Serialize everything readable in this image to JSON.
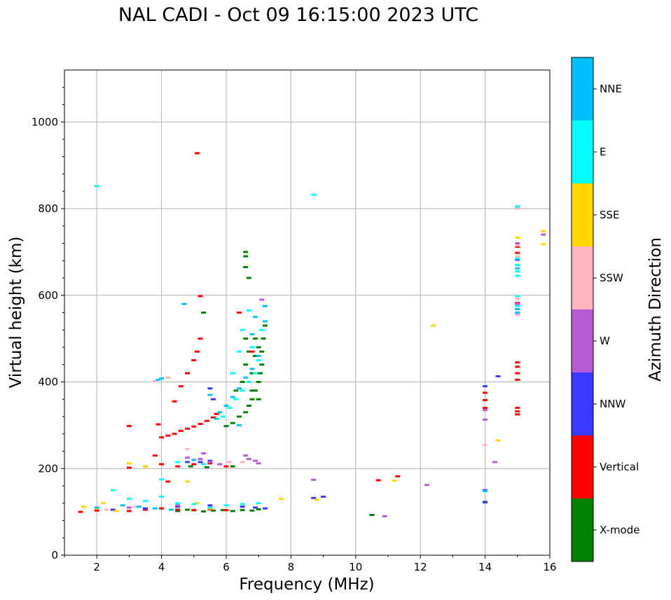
{
  "chart_data": {
    "type": "scatter",
    "title": "NAL CADI - Oct 09 16:15:00 2023 UTC",
    "xlabel": "Frequency (MHz)",
    "ylabel": "Virtual height (km)",
    "xlim": [
      1,
      16
    ],
    "ylim": [
      0,
      1120
    ],
    "xticks": [
      2,
      4,
      6,
      8,
      10,
      12,
      14,
      16
    ],
    "yticks": [
      0,
      200,
      400,
      600,
      800,
      1000
    ],
    "grid": true,
    "colorbar": {
      "label": "Azimuth Direction",
      "categories": [
        {
          "name": "X-mode",
          "color": "#008000"
        },
        {
          "name": "Vertical",
          "color": "#ff0000"
        },
        {
          "name": "NNW",
          "color": "#3a3aff"
        },
        {
          "name": "W",
          "color": "#b65ad6"
        },
        {
          "name": "SSW",
          "color": "#ffb6c1"
        },
        {
          "name": "SSE",
          "color": "#ffd700"
        },
        {
          "name": "E",
          "color": "#00ffff"
        },
        {
          "name": "NNE",
          "color": "#00bfff"
        }
      ]
    },
    "series": [
      {
        "name": "X-mode",
        "points": [
          [
            4.5,
            102
          ],
          [
            4.8,
            105
          ],
          [
            5.0,
            104
          ],
          [
            5.3,
            101
          ],
          [
            5.6,
            103
          ],
          [
            5.9,
            104
          ],
          [
            6.2,
            102
          ],
          [
            6.5,
            104
          ],
          [
            6.8,
            103
          ],
          [
            7.0,
            106
          ],
          [
            4.9,
            205
          ],
          [
            5.4,
            203
          ],
          [
            6.2,
            205
          ],
          [
            6.6,
            700
          ],
          [
            6.6,
            690
          ],
          [
            6.6,
            665
          ],
          [
            6.7,
            640
          ],
          [
            6.0,
            298
          ],
          [
            6.2,
            305
          ],
          [
            6.4,
            320
          ],
          [
            6.6,
            330
          ],
          [
            6.7,
            345
          ],
          [
            6.8,
            360
          ],
          [
            6.9,
            380
          ],
          [
            7.0,
            400
          ],
          [
            7.05,
            420
          ],
          [
            7.1,
            440
          ],
          [
            7.1,
            470
          ],
          [
            7.15,
            500
          ],
          [
            7.2,
            530
          ],
          [
            6.8,
            420
          ],
          [
            6.9,
            460
          ],
          [
            6.7,
            470
          ],
          [
            6.6,
            500
          ],
          [
            6.9,
            500
          ],
          [
            7.0,
            480
          ],
          [
            7.0,
            360
          ],
          [
            6.8,
            380
          ],
          [
            6.6,
            440
          ],
          [
            6.5,
            400
          ],
          [
            6.3,
            380
          ],
          [
            5.3,
            560
          ],
          [
            14.0,
            123
          ],
          [
            15.0,
            582
          ],
          [
            15.0,
            325
          ],
          [
            10.5,
            93
          ]
        ]
      },
      {
        "name": "Vertical",
        "points": [
          [
            1.5,
            100
          ],
          [
            2.0,
            103
          ],
          [
            2.5,
            105
          ],
          [
            3.0,
            102
          ],
          [
            3.5,
            105
          ],
          [
            4.0,
            108
          ],
          [
            4.5,
            105
          ],
          [
            5.0,
            104
          ],
          [
            5.5,
            106
          ],
          [
            6.0,
            104
          ],
          [
            3.0,
            202
          ],
          [
            3.5,
            205
          ],
          [
            4.0,
            210
          ],
          [
            4.5,
            205
          ],
          [
            5.0,
            210
          ],
          [
            5.5,
            212
          ],
          [
            6.0,
            205
          ],
          [
            4.0,
            272
          ],
          [
            4.2,
            276
          ],
          [
            4.4,
            280
          ],
          [
            4.6,
            287
          ],
          [
            4.8,
            292
          ],
          [
            5.0,
            297
          ],
          [
            5.2,
            303
          ],
          [
            5.4,
            310
          ],
          [
            5.6,
            318
          ],
          [
            5.7,
            326
          ],
          [
            4.4,
            355
          ],
          [
            4.6,
            390
          ],
          [
            4.8,
            420
          ],
          [
            5.0,
            450
          ],
          [
            5.1,
            470
          ],
          [
            5.2,
            500
          ],
          [
            3.0,
            298
          ],
          [
            3.9,
            302
          ],
          [
            5.2,
            598
          ],
          [
            5.1,
            928
          ],
          [
            6.4,
            560
          ],
          [
            6.8,
            470
          ],
          [
            14.0,
            375
          ],
          [
            14.0,
            358
          ],
          [
            14.0,
            340
          ],
          [
            15.0,
            805
          ],
          [
            15.0,
            712
          ],
          [
            15.0,
            698
          ],
          [
            15.0,
            670
          ],
          [
            15.0,
            582
          ],
          [
            15.0,
            555
          ],
          [
            15.0,
            445
          ],
          [
            15.0,
            435
          ],
          [
            15.0,
            420
          ],
          [
            15.0,
            405
          ],
          [
            15.0,
            340
          ],
          [
            15.0,
            332
          ],
          [
            15.0,
            325
          ],
          [
            10.7,
            173
          ],
          [
            11.3,
            182
          ],
          [
            3.8,
            230
          ],
          [
            4.2,
            170
          ]
        ]
      },
      {
        "name": "NNW",
        "points": [
          [
            2.5,
            105
          ],
          [
            3.5,
            108
          ],
          [
            4.5,
            112
          ],
          [
            5.5,
            115
          ],
          [
            6.5,
            112
          ],
          [
            6.9,
            110
          ],
          [
            7.2,
            108
          ],
          [
            5.5,
            385
          ],
          [
            5.6,
            360
          ],
          [
            5.2,
            215
          ],
          [
            5.5,
            218
          ],
          [
            4.8,
            215
          ],
          [
            14.0,
            390
          ],
          [
            14.0,
            150
          ],
          [
            14.0,
            122
          ],
          [
            15.0,
            682
          ],
          [
            9.0,
            135
          ],
          [
            8.7,
            132
          ],
          [
            14.4,
            413
          ]
        ]
      },
      {
        "name": "W",
        "points": [
          [
            4.8,
            225
          ],
          [
            5.2,
            222
          ],
          [
            5.5,
            215
          ],
          [
            6.7,
            222
          ],
          [
            6.9,
            218
          ],
          [
            7.0,
            212
          ],
          [
            5.3,
            235
          ],
          [
            5.8,
            210
          ],
          [
            7.1,
            590
          ],
          [
            6.6,
            230
          ],
          [
            14.0,
            335
          ],
          [
            14.0,
            313
          ],
          [
            14.3,
            215
          ],
          [
            15.0,
            720
          ],
          [
            15.0,
            580
          ],
          [
            15.8,
            740
          ],
          [
            12.2,
            162
          ],
          [
            10.9,
            90
          ],
          [
            8.7,
            174
          ],
          [
            4.5,
            115
          ],
          [
            3.0,
            110
          ]
        ]
      },
      {
        "name": "SSW",
        "points": [
          [
            2.3,
            105
          ],
          [
            3.2,
            112
          ],
          [
            4.8,
            245
          ],
          [
            6.5,
            215
          ],
          [
            15.0,
            800
          ],
          [
            15.0,
            715
          ],
          [
            15.0,
            690
          ],
          [
            15.0,
            592
          ],
          [
            15.0,
            555
          ],
          [
            14.0,
            254
          ],
          [
            4.2,
            410
          ],
          [
            3.8,
            402
          ],
          [
            6.1,
            215
          ]
        ]
      },
      {
        "name": "SSE",
        "points": [
          [
            1.6,
            112
          ],
          [
            2.0,
            108
          ],
          [
            2.2,
            120
          ],
          [
            2.6,
            102
          ],
          [
            3.0,
            212
          ],
          [
            4.8,
            170
          ],
          [
            5.1,
            120
          ],
          [
            5.5,
            108
          ],
          [
            7.7,
            130
          ],
          [
            8.8,
            128
          ],
          [
            12.4,
            530
          ],
          [
            11.2,
            172
          ],
          [
            14.4,
            265
          ],
          [
            15.0,
            733
          ],
          [
            15.8,
            718
          ],
          [
            15.8,
            748
          ],
          [
            3.5,
            205
          ]
        ]
      },
      {
        "name": "E",
        "points": [
          [
            2.5,
            150
          ],
          [
            3.0,
            130
          ],
          [
            3.5,
            125
          ],
          [
            4.0,
            135
          ],
          [
            4.5,
            120
          ],
          [
            5.0,
            118
          ],
          [
            5.5,
            110
          ],
          [
            6.0,
            115
          ],
          [
            6.5,
            118
          ],
          [
            7.0,
            120
          ],
          [
            5.9,
            320
          ],
          [
            6.1,
            340
          ],
          [
            6.3,
            360
          ],
          [
            6.5,
            380
          ],
          [
            6.7,
            400
          ],
          [
            6.9,
            420
          ],
          [
            7.0,
            450
          ],
          [
            7.1,
            520
          ],
          [
            6.5,
            520
          ],
          [
            6.8,
            480
          ],
          [
            6.2,
            420
          ],
          [
            6.4,
            470
          ],
          [
            4.5,
            215
          ],
          [
            5.3,
            210
          ],
          [
            6.7,
            565
          ],
          [
            8.7,
            832
          ],
          [
            15.0,
            805
          ],
          [
            15.0,
            685
          ],
          [
            15.0,
            670
          ],
          [
            15.0,
            655
          ],
          [
            15.0,
            645
          ],
          [
            15.0,
            598
          ],
          [
            15.0,
            575
          ],
          [
            2.0,
            852
          ],
          [
            4.0,
            175
          ]
        ]
      },
      {
        "name": "NNE",
        "points": [
          [
            2.0,
            110
          ],
          [
            2.8,
            115
          ],
          [
            3.3,
            112
          ],
          [
            3.8,
            108
          ],
          [
            4.3,
            105
          ],
          [
            5.7,
            315
          ],
          [
            5.8,
            330
          ],
          [
            6.0,
            345
          ],
          [
            6.2,
            365
          ],
          [
            6.4,
            385
          ],
          [
            6.6,
            410
          ],
          [
            6.8,
            430
          ],
          [
            7.0,
            460
          ],
          [
            7.2,
            540
          ],
          [
            6.9,
            550
          ],
          [
            7.2,
            575
          ],
          [
            6.8,
            510
          ],
          [
            3.9,
            405
          ],
          [
            4.0,
            408
          ],
          [
            4.7,
            580
          ],
          [
            5.5,
            370
          ],
          [
            6.4,
            300
          ],
          [
            5.0,
            220
          ],
          [
            15.0,
            662
          ],
          [
            15.0,
            560
          ],
          [
            15.0,
            568
          ],
          [
            14.0,
            148
          ]
        ]
      }
    ]
  }
}
